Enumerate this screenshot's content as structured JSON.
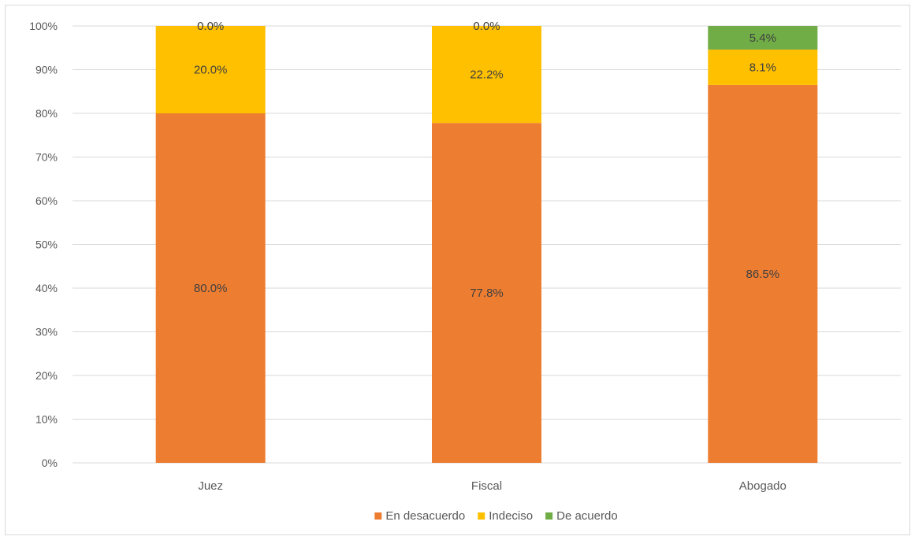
{
  "chart_data": {
    "type": "bar",
    "stacked": true,
    "percent_stacked": true,
    "categories": [
      "Juez",
      "Fiscal",
      "Abogado"
    ],
    "series": [
      {
        "name": "En desacuerdo",
        "values": [
          80.0,
          77.8,
          86.5
        ],
        "labels": [
          "80.0%",
          "77.8%",
          "86.5%"
        ],
        "color": "#ED7D31"
      },
      {
        "name": "Indeciso",
        "values": [
          20.0,
          22.2,
          8.1
        ],
        "labels": [
          "20.0%",
          "22.2%",
          "8.1%"
        ],
        "color": "#FFC000"
      },
      {
        "name": "De acuerdo",
        "values": [
          0.0,
          0.0,
          5.4
        ],
        "labels": [
          "0.0%",
          "0.0%",
          "5.4%"
        ],
        "color": "#70AD47"
      }
    ],
    "ylim": [
      0,
      100
    ],
    "yticks": [
      "0%",
      "10%",
      "20%",
      "30%",
      "40%",
      "50%",
      "60%",
      "70%",
      "80%",
      "90%",
      "100%"
    ],
    "grid": true,
    "legend_position": "bottom",
    "gridline_color": "#d9d9d9"
  }
}
